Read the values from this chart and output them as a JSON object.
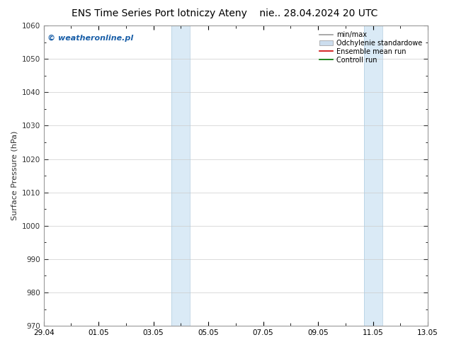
{
  "title_left": "ENS Time Series Port lotniczy Ateny",
  "title_right": "nie.. 28.04.2024 20 UTC",
  "ylabel": "Surface Pressure (hPa)",
  "ylim": [
    970,
    1060
  ],
  "yticks": [
    970,
    980,
    990,
    1000,
    1010,
    1020,
    1030,
    1040,
    1050,
    1060
  ],
  "xlim_start": 0,
  "xlim_end": 14,
  "xtick_labels": [
    "29.04",
    "01.05",
    "03.05",
    "05.05",
    "07.05",
    "09.05",
    "11.05",
    "13.05"
  ],
  "xtick_positions": [
    0,
    2,
    4,
    6,
    8,
    10,
    12,
    14
  ],
  "shaded_bands": [
    {
      "x_start": 4.667,
      "x_end": 5.333
    },
    {
      "x_start": 11.667,
      "x_end": 12.333
    }
  ],
  "shade_color": "#daeaf6",
  "shade_edge_color": "#b0cce0",
  "watermark_text": "© weatheronline.pl",
  "watermark_color": "#1a5fa8",
  "background_color": "#ffffff",
  "legend_entries": [
    {
      "label": "min/max",
      "color": "#999999",
      "style": "line"
    },
    {
      "label": "Odchylenie standardowe",
      "color": "#ccddee",
      "style": "box"
    },
    {
      "label": "Ensemble mean run",
      "color": "#cc0000",
      "style": "line"
    },
    {
      "label": "Controll run",
      "color": "#007700",
      "style": "line"
    }
  ],
  "grid_color": "#cccccc",
  "spine_color": "#999999",
  "tick_color": "#333333",
  "title_fontsize": 10,
  "label_fontsize": 8,
  "tick_fontsize": 7.5,
  "watermark_fontsize": 8,
  "legend_fontsize": 7
}
